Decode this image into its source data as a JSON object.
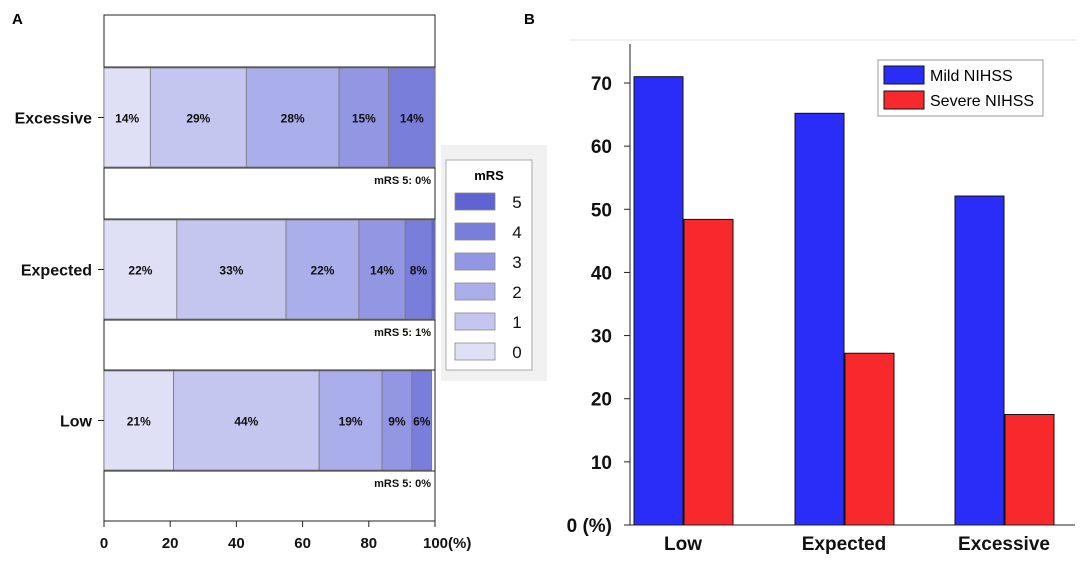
{
  "chart_data": [
    {
      "panel_label": "A",
      "type": "bar",
      "orientation": "horizontal",
      "stacked": true,
      "categories": [
        "Excessive",
        "Expected",
        "Low"
      ],
      "series": [
        {
          "name": "0",
          "values": [
            14,
            22,
            21
          ],
          "labels": [
            "14%",
            "22%",
            "21%"
          ]
        },
        {
          "name": "1",
          "values": [
            29,
            33,
            44
          ],
          "labels": [
            "29%",
            "33%",
            "44%"
          ]
        },
        {
          "name": "2",
          "values": [
            28,
            22,
            19
          ],
          "labels": [
            "28%",
            "22%",
            "19%"
          ]
        },
        {
          "name": "3",
          "values": [
            15,
            14,
            9
          ],
          "labels": [
            "15%",
            "14%",
            "9%"
          ]
        },
        {
          "name": "4",
          "values": [
            14,
            8,
            6
          ],
          "labels": [
            "14%",
            "8%",
            "6%"
          ]
        },
        {
          "name": "5",
          "values": [
            0,
            1,
            0
          ],
          "labels": [
            "",
            "",
            ""
          ]
        }
      ],
      "mrs5_notes": [
        "mRS 5: 0%",
        "mRS 5: 1%",
        "mRS 5: 0%"
      ],
      "xlim": [
        0,
        100
      ],
      "xticks": [
        "0",
        "20",
        "40",
        "60",
        "80",
        "100(%)"
      ],
      "legend": {
        "title": "mRS",
        "entries": [
          "5",
          "4",
          "3",
          "2",
          "1",
          "0"
        ],
        "placement": "right"
      },
      "colors": [
        "#dfe0f6",
        "#c4c6f0",
        "#aaaeea",
        "#9296e3",
        "#7a7edb",
        "#5f64d2"
      ]
    },
    {
      "panel_label": "B",
      "type": "bar",
      "categories": [
        "Low",
        "Expected",
        "Excessive"
      ],
      "series": [
        {
          "name": "Mild NIHSS",
          "values": [
            71,
            65.2,
            52.1
          ],
          "color": "#2a2cf8"
        },
        {
          "name": "Severe NIHSS",
          "values": [
            48.4,
            27.2,
            17.5
          ],
          "color": "#f8292c"
        }
      ],
      "ylim": [
        0,
        75
      ],
      "yticks": [
        "0 (%)",
        "10",
        "20",
        "30",
        "40",
        "50",
        "60",
        "70"
      ],
      "legend_placement": "top-right"
    }
  ]
}
